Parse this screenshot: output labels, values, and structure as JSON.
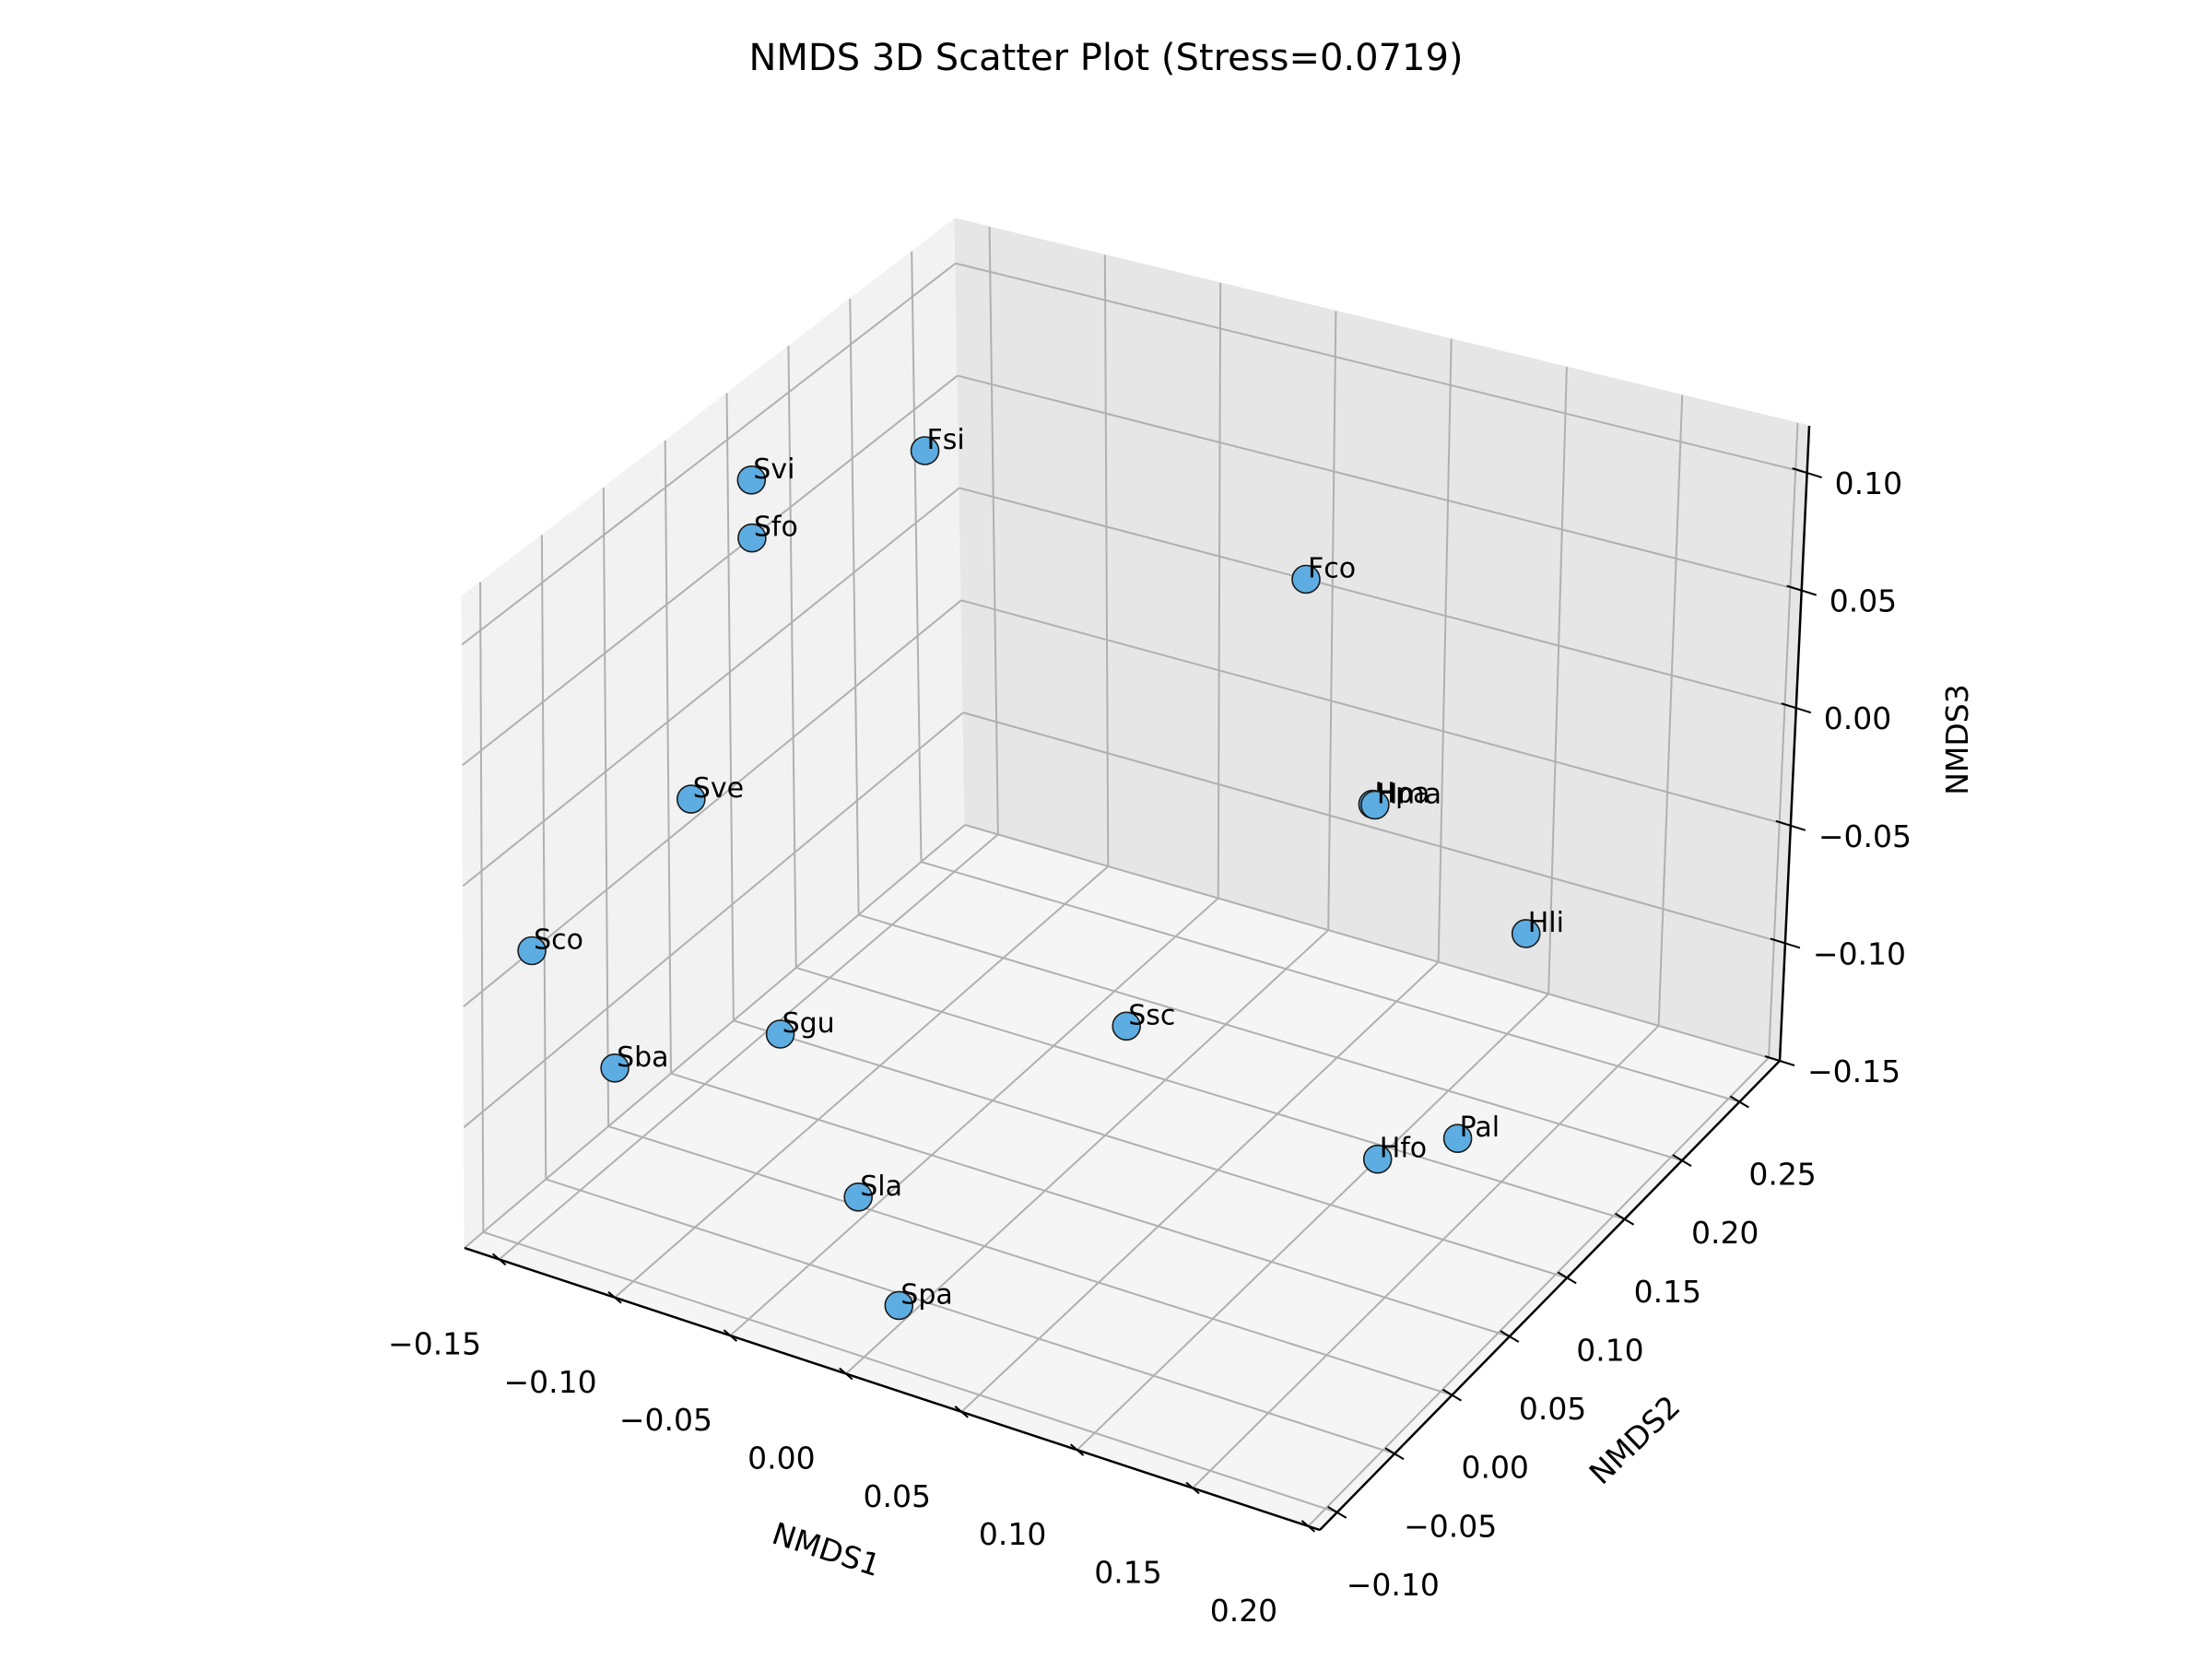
{
  "chart_data": {
    "type": "scatter",
    "projection": "3d",
    "title": "NMDS 3D Scatter Plot (Stress=0.0719)",
    "xlabel": "NMDS1",
    "ylabel": "NMDS2",
    "zlabel": "NMDS3",
    "xlim": [
      -0.165,
      0.205
    ],
    "ylim": [
      -0.115,
      0.285
    ],
    "zlim": [
      -0.15,
      0.12
    ],
    "xticks": [
      "−0.15",
      "−0.10",
      "−0.05",
      "0.00",
      "0.05",
      "0.10",
      "0.15",
      "0.20"
    ],
    "yticks": [
      "−0.10",
      "−0.05",
      "0.00",
      "0.05",
      "0.10",
      "0.15",
      "0.20",
      "0.25"
    ],
    "zticks": [
      "−0.15",
      "−0.10",
      "−0.05",
      "0.00",
      "0.05",
      "0.10"
    ],
    "grid": true,
    "marker_color": "#5DADE2",
    "marker_edge_color": "#1a1a1a",
    "points": [
      {
        "label": "Fsi",
        "x": -0.135,
        "y": 0.205,
        "z": 0.06
      },
      {
        "label": "Fco",
        "x": 0.02,
        "y": 0.235,
        "z": 0.035
      },
      {
        "label": "Svi",
        "x": -0.16,
        "y": 0.11,
        "z": 0.08
      },
      {
        "label": "Sfo",
        "x": -0.16,
        "y": 0.11,
        "z": 0.055
      },
      {
        "label": "Hpa",
        "x": 0.105,
        "y": 0.13,
        "z": 0.01
      },
      {
        "label": "Hma",
        "x": 0.106,
        "y": 0.13,
        "z": 0.01
      },
      {
        "label": "Hli",
        "x": 0.12,
        "y": 0.23,
        "z": -0.09
      },
      {
        "label": "Sve",
        "x": -0.155,
        "y": 0.05,
        "z": -0.03
      },
      {
        "label": "Sco",
        "x": -0.165,
        "y": -0.06,
        "z": -0.05
      },
      {
        "label": "Ssc",
        "x": 0.01,
        "y": 0.1,
        "z": -0.1
      },
      {
        "label": "Sgu",
        "x": -0.1,
        "y": 0.02,
        "z": -0.1
      },
      {
        "label": "Sba",
        "x": -0.14,
        "y": -0.04,
        "z": -0.1
      },
      {
        "label": "Hfo",
        "x": 0.1,
        "y": 0.14,
        "z": -0.15
      },
      {
        "label": "Pal",
        "x": 0.12,
        "y": 0.17,
        "z": -0.15
      },
      {
        "label": "Sla",
        "x": -0.05,
        "y": -0.01,
        "z": -0.14
      },
      {
        "label": "Spa",
        "x": 0.01,
        "y": -0.09,
        "z": -0.13
      }
    ]
  }
}
